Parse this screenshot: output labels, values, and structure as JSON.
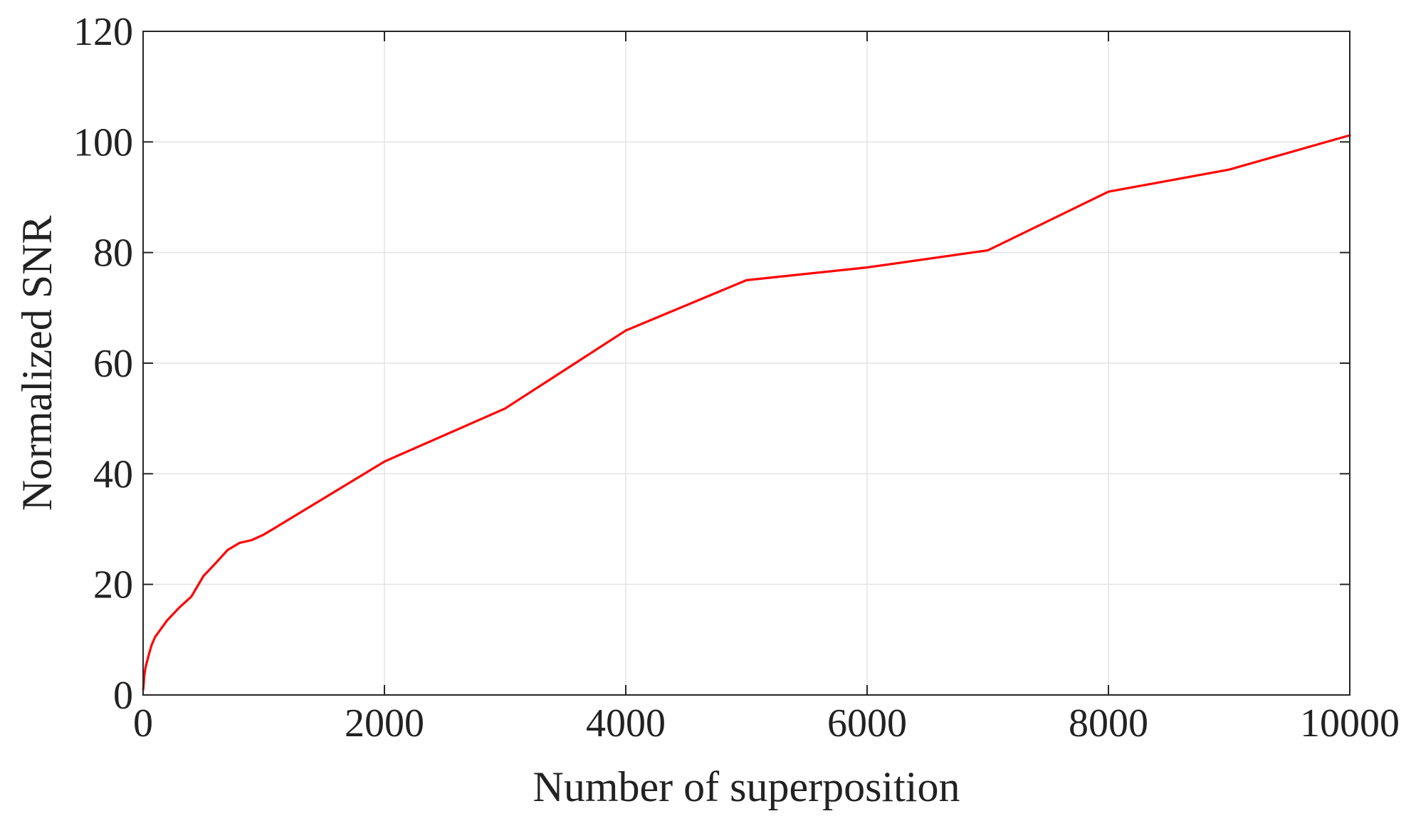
{
  "chart_data": {
    "type": "line",
    "title": "",
    "xlabel": "Number of superposition",
    "ylabel": "Normalized SNR",
    "xlim": [
      0,
      10000
    ],
    "ylim": [
      0,
      120
    ],
    "xticks": [
      0,
      2000,
      4000,
      6000,
      8000,
      10000
    ],
    "yticks": [
      0,
      20,
      40,
      60,
      80,
      100,
      120
    ],
    "grid": true,
    "legend": "none",
    "series": [
      {
        "color": "#ff0000",
        "x": [
          1,
          10,
          20,
          50,
          70,
          100,
          150,
          200,
          300,
          400,
          500,
          600,
          700,
          800,
          900,
          1000,
          2000,
          3000,
          4000,
          5000,
          6000,
          7000,
          8000,
          9000,
          10000
        ],
        "y": [
          1,
          3.5,
          5,
          7.5,
          9,
          10.5,
          12,
          13.5,
          15.8,
          17.8,
          21.5,
          23.8,
          26.2,
          27.5,
          28,
          29,
          42.2,
          51.8,
          65.9,
          75,
          77.3,
          80.4,
          91,
          95,
          101.2
        ]
      }
    ]
  }
}
